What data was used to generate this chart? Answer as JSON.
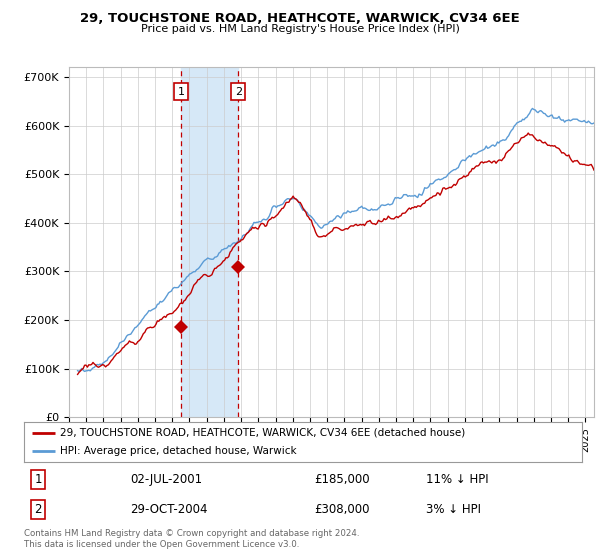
{
  "title": "29, TOUCHSTONE ROAD, HEATHCOTE, WARWICK, CV34 6EE",
  "subtitle": "Price paid vs. HM Land Registry's House Price Index (HPI)",
  "legend_line1": "29, TOUCHSTONE ROAD, HEATHCOTE, WARWICK, CV34 6EE (detached house)",
  "legend_line2": "HPI: Average price, detached house, Warwick",
  "annotation1_date": "02-JUL-2001",
  "annotation1_price": "£185,000",
  "annotation1_hpi": "11% ↓ HPI",
  "annotation2_date": "29-OCT-2004",
  "annotation2_price": "£308,000",
  "annotation2_hpi": "3% ↓ HPI",
  "footnote": "Contains HM Land Registry data © Crown copyright and database right 2024.\nThis data is licensed under the Open Government Licence v3.0.",
  "hpi_color": "#5b9bd5",
  "sale_color": "#c00000",
  "annotation_color": "#c00000",
  "shade_color": "#d6e8f7",
  "ylim": [
    0,
    720000
  ],
  "yticks": [
    0,
    100000,
    200000,
    300000,
    400000,
    500000,
    600000,
    700000
  ],
  "ytick_labels": [
    "£0",
    "£100K",
    "£200K",
    "£300K",
    "£400K",
    "£500K",
    "£600K",
    "£700K"
  ],
  "sale1_x": 2001.5,
  "sale1_y": 185000,
  "sale2_x": 2004.83,
  "sale2_y": 308000,
  "xmin": 1995.5,
  "xmax": 2025.5,
  "background_color": "#ffffff",
  "plot_bg_color": "#ffffff",
  "grid_color": "#cccccc"
}
